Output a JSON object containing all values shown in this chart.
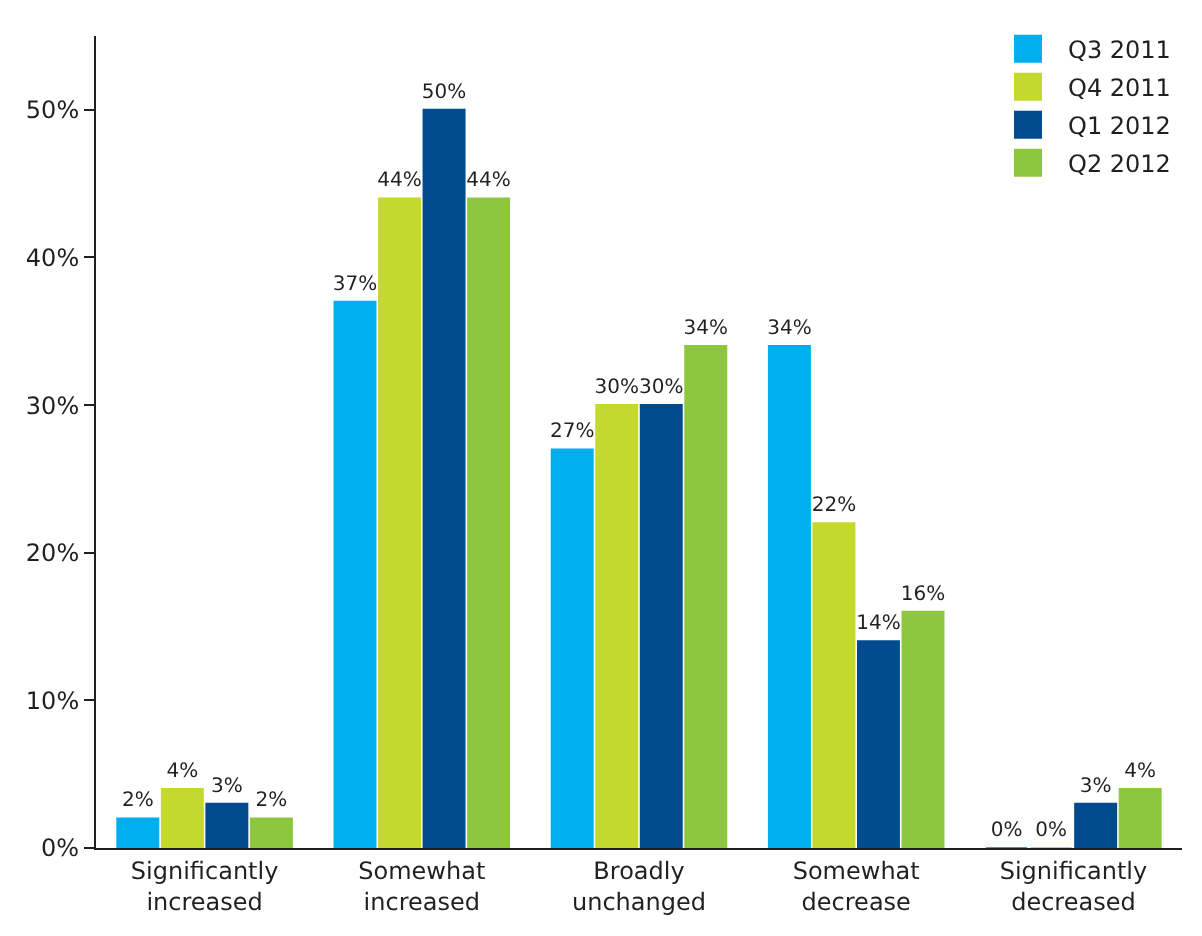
{
  "chart_data": {
    "type": "bar",
    "categories": [
      "Significantly increased",
      "Somewhat increased",
      "Broadly unchanged",
      "Somewhat decrease",
      "Significantly decreased"
    ],
    "series": [
      {
        "name": "Q3 2011",
        "color": "#00aeef",
        "values": [
          2,
          37,
          27,
          34,
          0
        ],
        "value_labels": [
          "2%",
          "37%",
          "27%",
          "34%",
          "0%"
        ]
      },
      {
        "name": "Q4 2011",
        "color": "#c4d82e",
        "values": [
          4,
          44,
          30,
          22,
          0
        ],
        "value_labels": [
          "4%",
          "44%",
          "30%",
          "22%",
          "0%"
        ]
      },
      {
        "name": "Q1 2012",
        "color": "#004b8d",
        "values": [
          3,
          50,
          30,
          14,
          3
        ],
        "value_labels": [
          "3%",
          "50%",
          "30%",
          "14%",
          "3%"
        ]
      },
      {
        "name": "Q2 2012",
        "color": "#8dc63f",
        "values": [
          2,
          44,
          34,
          16,
          4
        ],
        "value_labels": [
          "2%",
          "44%",
          "34%",
          "16%",
          "4%"
        ]
      }
    ],
    "ylim": [
      0,
      55
    ],
    "yticks": [
      {
        "value": 0,
        "label": "0%"
      },
      {
        "value": 10,
        "label": "10%"
      },
      {
        "value": 20,
        "label": "20%"
      },
      {
        "value": 30,
        "label": "30%"
      },
      {
        "value": 40,
        "label": "40%"
      },
      {
        "value": 50,
        "label": "50%"
      }
    ],
    "legend": "top right"
  }
}
